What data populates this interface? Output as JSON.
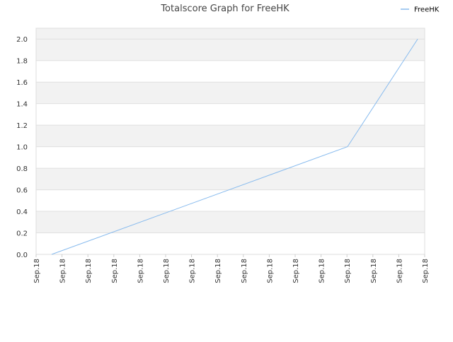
{
  "chart_data": {
    "type": "line",
    "title": "Totalscore Graph for FreeHK",
    "x": [
      0.6,
      12.02,
      14.73
    ],
    "series": [
      {
        "name": "FreeHK",
        "color": "#88bbee",
        "values": [
          0,
          1.0,
          2.0
        ]
      }
    ],
    "xlim": [
      0,
      15
    ],
    "xticks": [
      {
        "value": 0,
        "label": "Sep.18"
      },
      {
        "value": 1,
        "label": "Sep.18"
      },
      {
        "value": 2,
        "label": "Sep.18"
      },
      {
        "value": 3,
        "label": "Sep.18"
      },
      {
        "value": 4,
        "label": "Sep.18"
      },
      {
        "value": 5,
        "label": "Sep.18"
      },
      {
        "value": 6,
        "label": "Sep.18"
      },
      {
        "value": 7,
        "label": "Sep.18"
      },
      {
        "value": 8,
        "label": "Sep.18"
      },
      {
        "value": 9,
        "label": "Sep.18"
      },
      {
        "value": 10,
        "label": "Sep.18"
      },
      {
        "value": 11,
        "label": "Sep.18"
      },
      {
        "value": 12,
        "label": "Sep.18"
      },
      {
        "value": 13,
        "label": "Sep.18"
      },
      {
        "value": 14,
        "label": "Sep.18"
      },
      {
        "value": 15,
        "label": "Sep.18"
      }
    ],
    "ylim": [
      0,
      2.1
    ],
    "yticks": [
      {
        "value": 0,
        "label": "0.0"
      },
      {
        "value": 0.2,
        "label": "0.2"
      },
      {
        "value": 0.4,
        "label": "0.4"
      },
      {
        "value": 0.6,
        "label": "0.6"
      },
      {
        "value": 0.8,
        "label": "0.8"
      },
      {
        "value": 1,
        "label": "1.0"
      },
      {
        "value": 1.2,
        "label": "1.2"
      },
      {
        "value": 1.4,
        "label": "1.4"
      },
      {
        "value": 1.6,
        "label": "1.6"
      },
      {
        "value": 1.8,
        "label": "1.8"
      },
      {
        "value": 2,
        "label": "2.0"
      }
    ],
    "grid": true,
    "legend": "top-right"
  }
}
